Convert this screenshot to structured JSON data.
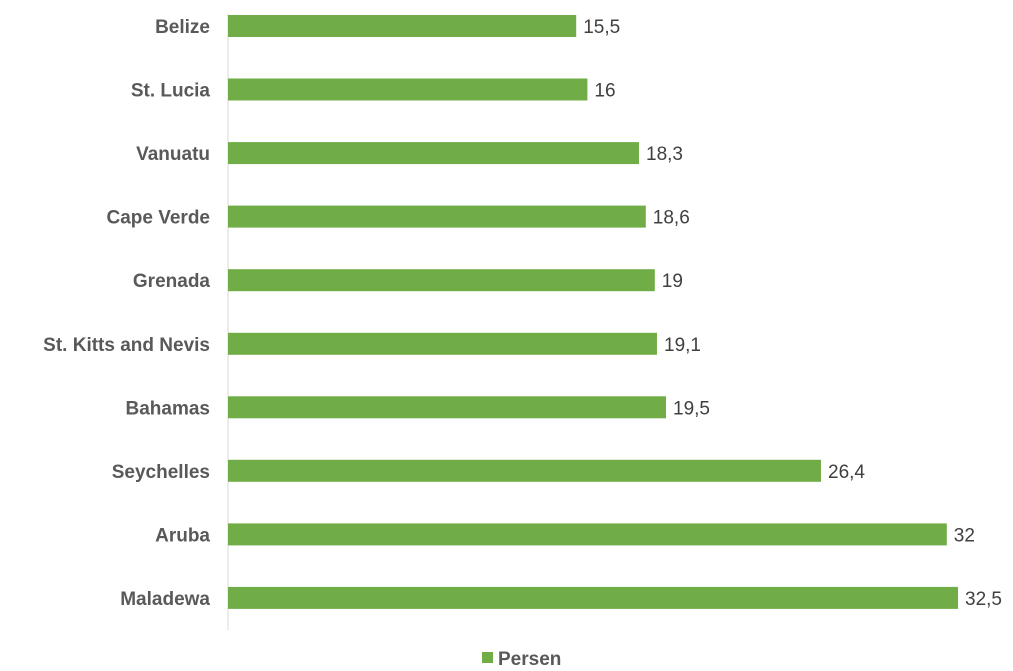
{
  "chart_data": {
    "type": "bar",
    "orientation": "horizontal",
    "categories": [
      "Belize",
      "St. Lucia",
      "Vanuatu",
      "Cape Verde",
      "Grenada",
      "St. Kitts and Nevis",
      "Bahamas",
      "Seychelles",
      "Aruba",
      "Maladewa"
    ],
    "series": [
      {
        "name": "Persen",
        "values": [
          15.5,
          16,
          18.3,
          18.6,
          19,
          19.1,
          19.5,
          26.4,
          32,
          32.5
        ],
        "labels": [
          "15,5",
          "16",
          "18,3",
          "18,6",
          "19",
          "19,1",
          "19,5",
          "26,4",
          "32",
          "32,5"
        ],
        "color": "#70AD47"
      }
    ],
    "xlim": [
      0,
      32.5
    ],
    "grid": false,
    "legend": "bottom"
  },
  "colors": {
    "bar": "#70AD47",
    "axis": "#D9D9D9"
  }
}
